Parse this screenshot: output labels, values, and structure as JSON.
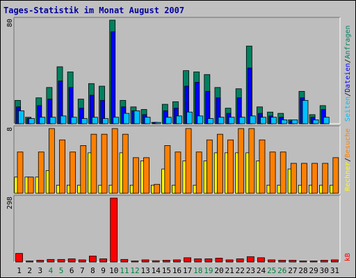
{
  "chart_data": {
    "type": "bar",
    "title": "Tages-Statistik im Monat August 2007",
    "days": [
      "1",
      "2",
      "3",
      "4",
      "5",
      "6",
      "7",
      "8",
      "9",
      "10",
      "11",
      "12",
      "13",
      "14",
      "15",
      "16",
      "17",
      "18",
      "19",
      "20",
      "21",
      "22",
      "23",
      "24",
      "25",
      "26",
      "27",
      "28",
      "29",
      "30",
      "31"
    ],
    "weekend_days": [
      "4",
      "5",
      "11",
      "12",
      "18",
      "19",
      "25",
      "26"
    ],
    "panels": [
      {
        "id": "hits",
        "scale_max": 80,
        "scale_label": "80",
        "series": [
          {
            "key": "anfragen",
            "name": "Anfragen",
            "color": "#008060",
            "values": [
              18,
              5,
              20,
              28,
              44,
              40,
              19,
              31,
              29,
              80,
              18,
              13,
              11,
              1,
              15,
              17,
              41,
              40,
              38,
              28,
              12,
              27,
              60,
              13,
              9,
              8,
              3,
              25,
              7,
              14,
              0
            ]
          },
          {
            "key": "dateien",
            "name": "Dateien",
            "color": "#0000ff",
            "values": [
              13,
              4,
              14,
              19,
              33,
              28,
              12,
              22,
              18,
              71,
              13,
              10,
              7,
              1,
              10,
              12,
              29,
              32,
              25,
              20,
              8,
              20,
              43,
              8,
              6,
              5,
              2,
              20,
              5,
              11,
              0
            ]
          },
          {
            "key": "seiten",
            "name": "Seiten",
            "color": "#00c0ff",
            "values": [
              10,
              4,
              5,
              5,
              6,
              5,
              4,
              5,
              4,
              5,
              8,
              10,
              5,
              1,
              5,
              6,
              9,
              6,
              4,
              5,
              5,
              5,
              6,
              5,
              5,
              3,
              3,
              18,
              3,
              5,
              0
            ]
          }
        ]
      },
      {
        "id": "visits",
        "scale_max": 8,
        "scale_label": "8",
        "series": [
          {
            "key": "besuche",
            "name": "Besuche",
            "color": "#ff8000",
            "values": [
              5.1,
              2.0,
              5.1,
              8.0,
              6.6,
              5.1,
              5.9,
              7.3,
              7.3,
              8.0,
              7.3,
              4.4,
              4.4,
              1.1,
              5.9,
              5.1,
              8.0,
              5.1,
              6.6,
              7.3,
              6.6,
              8.0,
              8.0,
              6.6,
              5.1,
              5.1,
              3.7,
              3.7,
              3.7,
              3.7,
              4.4
            ]
          },
          {
            "key": "rechner",
            "name": "Rechner",
            "color": "#ffff00",
            "values": [
              2.0,
              2.0,
              2.0,
              2.8,
              1.0,
              1.0,
              1.0,
              5.0,
              1.0,
              1.0,
              5.0,
              1.0,
              4.0,
              1.0,
              3.0,
              1.0,
              4.0,
              1.0,
              4.0,
              5.0,
              5.0,
              5.0,
              5.0,
              4.0,
              1.0,
              1.0,
              3.0,
              1.0,
              1.0,
              1.0,
              1.0
            ]
          }
        ]
      },
      {
        "id": "kb",
        "scale_max": 298,
        "scale_label": "298",
        "series": [
          {
            "key": "kb",
            "name": "kB",
            "color": "#ff0000",
            "values": [
              40,
              5,
              8,
              12,
              12,
              15,
              10,
              28,
              15,
              298,
              12,
              5,
              10,
              6,
              8,
              10,
              20,
              15,
              15,
              18,
              10,
              15,
              25,
              20,
              10,
              8,
              8,
              5,
              5,
              8,
              10
            ]
          }
        ]
      }
    ],
    "legend_top": [
      "Anfragen",
      "/",
      "Dateien",
      "/",
      "Seiten"
    ],
    "legend_mid": [
      "Besuche",
      "/",
      "Rechner"
    ],
    "legend_kb": "kB",
    "colors": {
      "text_blue": "#0000a0",
      "weekend": "#008040",
      "anfragen": "#008060",
      "dateien": "#0000ff",
      "seiten": "#00c0ff",
      "besuche": "#ff8000",
      "rechner": "#ffff00",
      "kb": "#ff0000"
    }
  }
}
